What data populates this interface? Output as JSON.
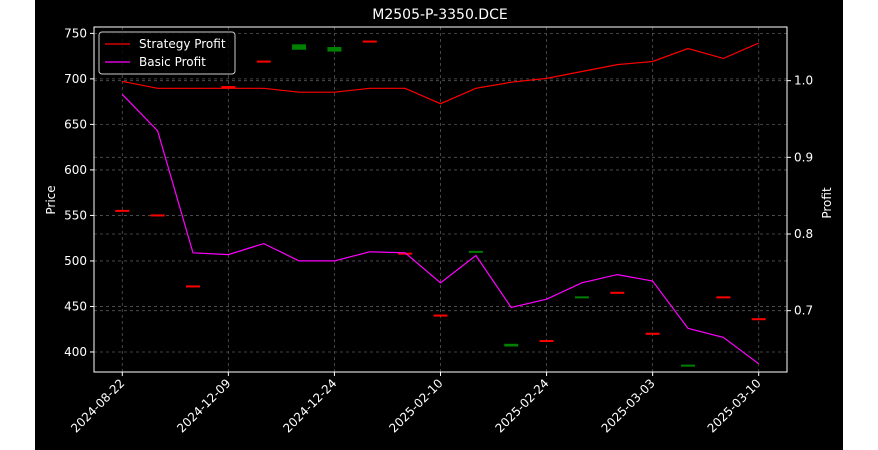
{
  "chart_data": {
    "type": "line",
    "title": "M2505-P-3350.DCE",
    "ylabel_left": "Price",
    "ylabel_right": "Profit",
    "xlabel": "",
    "grid": true,
    "legend_placement": "top-left",
    "x_ticks": [
      "2024-08-22",
      "2024-12-09",
      "2024-12-24",
      "2025-02-10",
      "2025-02-24",
      "2025-03-03",
      "2025-03-10"
    ],
    "y_left": {
      "lim": [
        378,
        757
      ],
      "ticks": [
        400,
        450,
        500,
        550,
        600,
        650,
        700,
        750
      ]
    },
    "y_right": {
      "lim": [
        0.62,
        1.07
      ],
      "ticks": [
        0.7,
        0.8,
        0.9,
        1.0
      ]
    },
    "x_range": [
      -0.8,
      18.8
    ],
    "series": [
      {
        "name": "Strategy Profit",
        "axis": "right",
        "color": "#ff0000",
        "values": [
          0.999,
          0.99,
          0.99,
          0.99,
          0.99,
          0.985,
          0.985,
          0.99,
          0.99,
          0.97,
          0.99,
          0.998,
          1.003,
          1.012,
          1.021,
          1.025,
          1.042,
          1.029,
          1.049
        ]
      },
      {
        "name": "Basic Profit",
        "axis": "left",
        "color": "#ff00ff",
        "values": [
          683,
          643,
          509,
          507,
          519,
          500,
          500,
          510,
          509,
          476,
          506,
          449,
          458,
          476,
          485,
          478,
          426,
          416,
          387
        ]
      }
    ],
    "candles": [
      {
        "x": 0,
        "open": 555,
        "close": 555,
        "color": "#ff0000"
      },
      {
        "x": 1,
        "open": 550,
        "close": 550,
        "color": "#ff0000"
      },
      {
        "x": 2,
        "open": 472,
        "close": 472,
        "color": "#ff0000"
      },
      {
        "x": 3,
        "open": 691,
        "close": 690,
        "color": "#ff0000"
      },
      {
        "x": 4,
        "open": 719,
        "close": 719,
        "color": "#ff0000"
      },
      {
        "x": 5,
        "open": 732,
        "close": 738,
        "color": "#008000"
      },
      {
        "x": 6,
        "open": 730,
        "close": 735,
        "color": "#008000"
      },
      {
        "x": 7,
        "open": 741,
        "close": 741,
        "color": "#ff0000"
      },
      {
        "x": 8,
        "open": 508,
        "close": 508,
        "color": "#ff0000"
      },
      {
        "x": 9,
        "open": 440,
        "close": 438,
        "color": "#ff0000"
      },
      {
        "x": 10,
        "open": 509,
        "close": 510,
        "color": "#008000"
      },
      {
        "x": 11,
        "open": 406,
        "close": 409,
        "color": "#008000"
      },
      {
        "x": 12,
        "open": 412,
        "close": 412,
        "color": "#ff0000"
      },
      {
        "x": 13,
        "open": 458,
        "close": 460,
        "color": "#008000"
      },
      {
        "x": 14,
        "open": 465,
        "close": 465,
        "color": "#ff0000"
      },
      {
        "x": 15,
        "open": 420,
        "close": 420,
        "color": "#ff0000"
      },
      {
        "x": 16,
        "open": 384,
        "close": 385,
        "color": "#008000"
      },
      {
        "x": 17,
        "open": 460,
        "close": 460,
        "color": "#ff0000"
      },
      {
        "x": 18,
        "open": 436,
        "close": 436,
        "color": "#ff0000"
      }
    ],
    "x_tick_positions": [
      0,
      3,
      6,
      9,
      12,
      15,
      18
    ]
  }
}
